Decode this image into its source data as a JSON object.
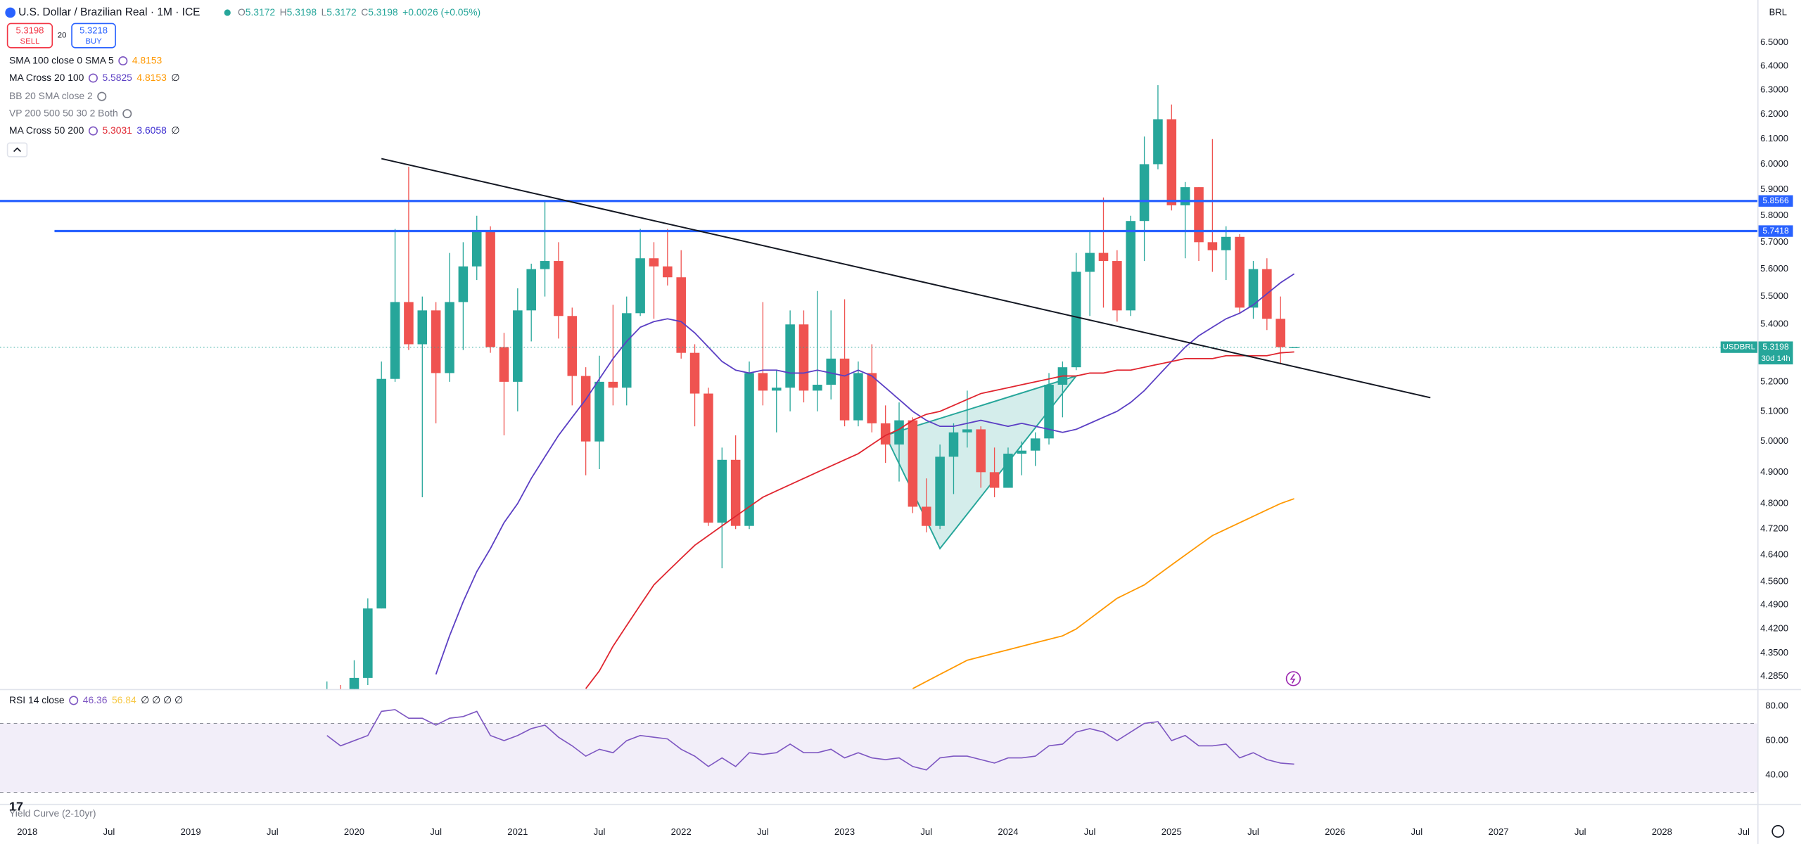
{
  "header": {
    "title": "U.S. Dollar / Brazilian Real · 1M · ICE",
    "ohlc": [
      {
        "key": "O",
        "value": "5.3172"
      },
      {
        "key": "H",
        "value": "5.3198"
      },
      {
        "key": "L",
        "value": "5.3172"
      },
      {
        "key": "C",
        "value": "5.3198"
      }
    ],
    "change": "+0.0026 (+0.05%)",
    "sell": {
      "price": "5.3198",
      "label": "SELL"
    },
    "spread": "20",
    "buy": {
      "price": "5.3218",
      "label": "BUY"
    },
    "currency": "BRL",
    "footer_indicator": "Yield Curve (2-10yr)"
  },
  "chart_data": [
    {
      "type": "candlestick",
      "x": [
        "2019-11",
        "2019-12",
        "2020-01",
        "2020-02",
        "2020-03",
        "2020-04",
        "2020-05",
        "2020-06",
        "2020-07",
        "2020-08",
        "2020-09",
        "2020-10",
        "2020-11",
        "2020-12",
        "2021-01",
        "2021-02",
        "2021-03",
        "2021-04",
        "2021-05",
        "2021-06",
        "2021-07",
        "2021-08",
        "2021-09",
        "2021-10",
        "2021-11",
        "2021-12",
        "2022-01",
        "2022-02",
        "2022-03",
        "2022-04",
        "2022-05",
        "2022-06",
        "2022-07",
        "2022-08",
        "2022-09",
        "2022-10",
        "2022-11",
        "2022-12",
        "2023-01",
        "2023-02",
        "2023-03",
        "2023-04",
        "2023-05",
        "2023-06",
        "2023-07",
        "2023-08",
        "2023-09",
        "2023-10",
        "2023-11",
        "2023-12",
        "2024-01",
        "2024-02",
        "2024-03",
        "2024-04",
        "2024-05",
        "2024-06",
        "2024-07",
        "2024-08",
        "2024-09",
        "2024-10",
        "2024-11",
        "2024-12",
        "2025-01",
        "2025-02",
        "2025-03",
        "2025-04",
        "2025-05",
        "2025-06",
        "2025-07",
        "2025-08",
        "2025-09",
        "2025-10"
      ],
      "open": [
        4.0,
        4.24,
        4.02,
        4.28,
        4.48,
        5.21,
        5.48,
        5.33,
        5.45,
        5.23,
        5.48,
        5.61,
        5.74,
        5.32,
        5.2,
        5.45,
        5.6,
        5.63,
        5.43,
        5.22,
        5.0,
        5.2,
        5.18,
        5.44,
        5.64,
        5.61,
        5.57,
        5.3,
        5.16,
        4.74,
        4.94,
        4.73,
        5.23,
        5.17,
        5.18,
        5.4,
        5.17,
        5.19,
        5.28,
        5.07,
        5.23,
        5.06,
        4.99,
        5.07,
        4.79,
        4.73,
        4.95,
        5.03,
        5.04,
        4.9,
        4.85,
        4.96,
        4.97,
        5.01,
        5.19,
        5.25,
        5.59,
        5.66,
        5.63,
        5.45,
        5.78,
        6.0,
        6.18,
        5.84,
        5.91,
        5.7,
        5.67,
        5.72,
        5.46,
        5.6,
        5.42,
        5.3172
      ],
      "high": [
        4.27,
        4.26,
        4.33,
        4.51,
        5.27,
        5.75,
        5.99,
        5.5,
        5.48,
        5.66,
        5.7,
        5.8,
        5.76,
        5.37,
        5.53,
        5.62,
        5.86,
        5.7,
        5.46,
        5.25,
        5.29,
        5.47,
        5.5,
        5.75,
        5.7,
        5.75,
        5.67,
        5.33,
        5.18,
        4.98,
        5.02,
        5.27,
        5.48,
        5.24,
        5.45,
        5.45,
        5.52,
        5.45,
        5.49,
        5.27,
        5.33,
        5.12,
        5.13,
        5.08,
        4.88,
        4.99,
        5.06,
        5.17,
        5.05,
        4.98,
        4.98,
        5.0,
        5.03,
        5.23,
        5.27,
        5.66,
        5.74,
        5.87,
        5.67,
        5.8,
        6.11,
        6.32,
        6.24,
        5.93,
        5.91,
        6.1,
        5.76,
        5.73,
        5.63,
        5.64,
        5.5,
        5.3198
      ],
      "low": [
        3.98,
        4.01,
        4.01,
        4.26,
        4.48,
        5.2,
        5.31,
        4.82,
        5.06,
        5.2,
        5.31,
        5.56,
        5.3,
        5.02,
        5.1,
        5.34,
        5.5,
        5.35,
        5.12,
        4.89,
        4.91,
        5.12,
        5.12,
        5.43,
        5.42,
        5.54,
        5.28,
        5.05,
        4.73,
        4.6,
        4.72,
        4.72,
        5.12,
        5.03,
        5.1,
        5.13,
        5.1,
        5.14,
        5.05,
        5.05,
        5.03,
        4.93,
        4.87,
        4.77,
        4.71,
        4.72,
        4.83,
        4.98,
        4.85,
        4.82,
        4.85,
        4.89,
        4.92,
        4.99,
        5.08,
        5.24,
        5.43,
        5.46,
        5.41,
        5.43,
        5.63,
        5.98,
        5.82,
        5.64,
        5.63,
        5.59,
        5.56,
        5.44,
        5.42,
        5.38,
        5.26,
        5.3172
      ],
      "close": [
        4.24,
        4.02,
        4.28,
        4.48,
        5.21,
        5.48,
        5.33,
        5.45,
        5.23,
        5.48,
        5.61,
        5.74,
        5.32,
        5.2,
        5.45,
        5.6,
        5.63,
        5.43,
        5.22,
        5.0,
        5.2,
        5.18,
        5.44,
        5.64,
        5.61,
        5.57,
        5.3,
        5.16,
        4.74,
        4.94,
        4.73,
        5.23,
        5.17,
        5.18,
        5.4,
        5.17,
        5.19,
        5.28,
        5.07,
        5.23,
        5.06,
        4.99,
        5.07,
        4.79,
        4.73,
        4.95,
        5.03,
        5.04,
        4.9,
        4.85,
        4.96,
        4.97,
        5.01,
        5.19,
        5.25,
        5.59,
        5.66,
        5.63,
        5.45,
        5.78,
        6.0,
        6.18,
        5.84,
        5.91,
        5.7,
        5.67,
        5.72,
        5.46,
        5.6,
        5.42,
        5.32,
        5.3198
      ],
      "up_color": "#26a69a",
      "down_color": "#ef5350",
      "log_scale": true,
      "grid": false,
      "ylim": [
        4.249,
        6.684
      ],
      "yticks": [
        {
          "value": 6.5,
          "label": "6.5000"
        },
        {
          "value": 6.4,
          "label": "6.4000"
        },
        {
          "value": 6.3,
          "label": "6.3000"
        },
        {
          "value": 6.2,
          "label": "6.2000"
        },
        {
          "value": 6.1,
          "label": "6.1000"
        },
        {
          "value": 6.0,
          "label": "6.0000"
        },
        {
          "value": 5.9,
          "label": "5.9000"
        },
        {
          "value": 5.8,
          "label": "5.8000"
        },
        {
          "value": 5.7,
          "label": "5.7000"
        },
        {
          "value": 5.6,
          "label": "5.6000"
        },
        {
          "value": 5.5,
          "label": "5.5000"
        },
        {
          "value": 5.4,
          "label": "5.4000"
        },
        {
          "value": 5.2,
          "label": "5.2000"
        },
        {
          "value": 5.1,
          "label": "5.1000"
        },
        {
          "value": 5.0,
          "label": "5.0000"
        },
        {
          "value": 4.9,
          "label": "4.9000"
        },
        {
          "value": 4.8,
          "label": "4.8000"
        },
        {
          "value": 4.72,
          "label": "4.7200"
        },
        {
          "value": 4.64,
          "label": "4.6400"
        },
        {
          "value": 4.56,
          "label": "4.5600"
        },
        {
          "value": 4.49,
          "label": "4.4900"
        },
        {
          "value": 4.42,
          "label": "4.4200"
        },
        {
          "value": 4.35,
          "label": "4.3500"
        },
        {
          "value": 4.285,
          "label": "4.2850"
        }
      ],
      "xlim": [
        "2017-11",
        "2028-08"
      ],
      "xticks": [
        {
          "value": "2018-01",
          "label": "2018"
        },
        {
          "value": "2018-07",
          "label": "Jul"
        },
        {
          "value": "2019-01",
          "label": "2019"
        },
        {
          "value": "2019-07",
          "label": "Jul"
        },
        {
          "value": "2020-01",
          "label": "2020"
        },
        {
          "value": "2020-07",
          "label": "Jul"
        },
        {
          "value": "2021-01",
          "label": "2021"
        },
        {
          "value": "2021-07",
          "label": "Jul"
        },
        {
          "value": "2022-01",
          "label": "2022"
        },
        {
          "value": "2022-07",
          "label": "Jul"
        },
        {
          "value": "2023-01",
          "label": "2023"
        },
        {
          "value": "2023-07",
          "label": "Jul"
        },
        {
          "value": "2024-01",
          "label": "2024"
        },
        {
          "value": "2024-07",
          "label": "Jul"
        },
        {
          "value": "2025-01",
          "label": "2025"
        },
        {
          "value": "2025-07",
          "label": "Jul"
        },
        {
          "value": "2026-01",
          "label": "2026"
        },
        {
          "value": "2026-07",
          "label": "Jul"
        },
        {
          "value": "2027-01",
          "label": "2027"
        },
        {
          "value": "2027-07",
          "label": "Jul"
        },
        {
          "value": "2028-01",
          "label": "2028"
        },
        {
          "value": "2028-07",
          "label": "Jul"
        }
      ],
      "series": [
        {
          "name": "SMA 100 close 0 SMA 5",
          "color": "#ff9800",
          "legend_values": [
            "4.8153"
          ],
          "legend_colors": [
            "#ff9800"
          ],
          "values": [
            null,
            null,
            null,
            null,
            null,
            null,
            null,
            null,
            null,
            null,
            null,
            null,
            null,
            null,
            null,
            null,
            null,
            null,
            null,
            null,
            null,
            null,
            null,
            null,
            null,
            null,
            null,
            null,
            null,
            null,
            null,
            null,
            null,
            null,
            null,
            null,
            null,
            null,
            null,
            null,
            null,
            null,
            null,
            4.25,
            4.27,
            4.29,
            4.31,
            4.33,
            4.34,
            4.35,
            4.36,
            4.37,
            4.38,
            4.39,
            4.4,
            4.42,
            4.45,
            4.48,
            4.51,
            4.53,
            4.55,
            4.58,
            4.61,
            4.64,
            4.67,
            4.7,
            4.72,
            4.74,
            4.76,
            4.78,
            4.8,
            4.8153
          ]
        },
        {
          "name": "MA Cross 20 100",
          "color": "#5b3fc4",
          "legend_values": [
            "5.5825",
            "4.8153",
            "∅"
          ],
          "legend_colors": [
            "#5b3fc4",
            "#ff9800",
            "#131722"
          ],
          "values": [
            null,
            null,
            null,
            null,
            null,
            null,
            null,
            null,
            4.29,
            4.4,
            4.5,
            4.59,
            4.66,
            4.74,
            4.8,
            4.88,
            4.95,
            5.02,
            5.08,
            5.14,
            5.21,
            5.28,
            5.34,
            5.39,
            5.41,
            5.42,
            5.41,
            5.37,
            5.32,
            5.27,
            5.24,
            5.23,
            5.24,
            5.24,
            5.23,
            5.23,
            5.24,
            5.23,
            5.22,
            5.24,
            5.22,
            5.18,
            5.14,
            5.1,
            5.07,
            5.05,
            5.05,
            5.06,
            5.07,
            5.06,
            5.05,
            5.06,
            5.05,
            5.04,
            5.03,
            5.04,
            5.06,
            5.08,
            5.1,
            5.13,
            5.17,
            5.22,
            5.27,
            5.32,
            5.36,
            5.39,
            5.42,
            5.44,
            5.47,
            5.51,
            5.55,
            5.5825
          ]
        },
        {
          "name": "MA Cross 50 200",
          "color": "#e0252f",
          "legend_values": [
            "5.3031",
            "3.6058",
            "∅"
          ],
          "legend_colors": [
            "#e0252f",
            "#3a2bd0",
            "#131722"
          ],
          "values": [
            null,
            null,
            null,
            null,
            null,
            null,
            null,
            null,
            null,
            null,
            null,
            null,
            null,
            null,
            null,
            null,
            null,
            null,
            null,
            4.25,
            4.3,
            4.37,
            4.43,
            4.49,
            4.55,
            4.59,
            4.63,
            4.67,
            4.7,
            4.73,
            4.76,
            4.79,
            4.82,
            4.84,
            4.86,
            4.88,
            4.9,
            4.92,
            4.94,
            4.96,
            4.99,
            5.02,
            5.04,
            5.07,
            5.09,
            5.1,
            5.12,
            5.14,
            5.16,
            5.17,
            5.18,
            5.19,
            5.2,
            5.21,
            5.22,
            5.22,
            5.23,
            5.23,
            5.24,
            5.24,
            5.25,
            5.26,
            5.27,
            5.28,
            5.28,
            5.28,
            5.29,
            5.29,
            5.29,
            5.29,
            5.3,
            5.3031
          ]
        }
      ],
      "hidden_indicators": [
        "BB 20 SMA close 2",
        "VP 200 500 50 30 2 Both"
      ],
      "levels": [
        {
          "value": 5.8566,
          "color": "#2962ff"
        },
        {
          "value": 5.7418,
          "color": "#2962ff",
          "start": "2018-03"
        }
      ],
      "trendline": {
        "x": [
          "2020-03",
          "2026-08"
        ],
        "values": [
          6.022,
          5.146
        ],
        "color": "#131722"
      },
      "pattern": {
        "x": [
          "2023-04",
          "2023-08",
          "2024-06"
        ],
        "values": [
          5.02,
          4.66,
          5.22
        ],
        "color": "#26a69a"
      },
      "last": {
        "name": "USDBRL",
        "value": 5.3198,
        "countdown": "30d 14h",
        "color": "#26a69a"
      }
    },
    {
      "type": "line",
      "title": "RSI 14 close",
      "legend_values": [
        "46.36",
        "56.84",
        "∅ ∅ ∅ ∅"
      ],
      "legend_colors": [
        "#7e57c2",
        "#f7c948",
        "#131722"
      ],
      "ylim": [
        30,
        90
      ],
      "yticks": [
        {
          "value": 80,
          "label": "80.00"
        },
        {
          "value": 60,
          "label": "60.00"
        },
        {
          "value": 40,
          "label": "40.00"
        }
      ],
      "band": [
        30,
        70
      ],
      "series": [
        {
          "color": "#7e57c2",
          "values": [
            63,
            57,
            60,
            63,
            77,
            78,
            73,
            73,
            69,
            73,
            74,
            77,
            63,
            60,
            63,
            67,
            69,
            62,
            57,
            51,
            55,
            53,
            60,
            63,
            62,
            61,
            55,
            51,
            45,
            50,
            45,
            53,
            52,
            53,
            58,
            53,
            53,
            55,
            50,
            53,
            50,
            49,
            50,
            45,
            43,
            50,
            51,
            51,
            49,
            47,
            50,
            50,
            51,
            57,
            58,
            65,
            67,
            65,
            60,
            65,
            70,
            71,
            60,
            63,
            57,
            57,
            58,
            50,
            53,
            49,
            47,
            46.36
          ]
        }
      ]
    }
  ]
}
